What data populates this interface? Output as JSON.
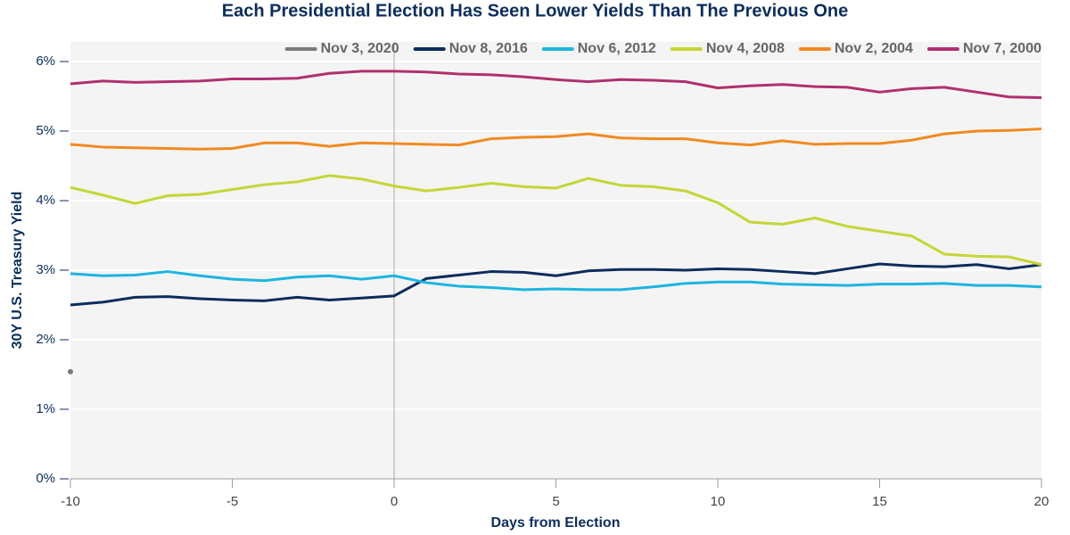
{
  "chart_data": {
    "type": "line",
    "title": "Each Presidential Election Has Seen Lower Yields Than The Previous One",
    "xlabel": "Days from Election",
    "ylabel": "30Y U.S. Treasury Yield",
    "x": [
      -10,
      -9,
      -8,
      -7,
      -6,
      -5,
      -4,
      -3,
      -2,
      -1,
      0,
      1,
      2,
      3,
      4,
      5,
      6,
      7,
      8,
      9,
      10,
      11,
      12,
      13,
      14,
      15,
      16,
      17,
      18,
      19,
      20
    ],
    "xlim": [
      -10,
      20
    ],
    "xticks": [
      -10,
      -5,
      0,
      5,
      10,
      15,
      20
    ],
    "ylim": [
      0,
      6
    ],
    "yticks": [
      {
        "value": 0,
        "label": "0%"
      },
      {
        "value": 1,
        "label": "1%"
      },
      {
        "value": 2,
        "label": "2%"
      },
      {
        "value": 3,
        "label": "3%"
      },
      {
        "value": 4,
        "label": "4%"
      },
      {
        "value": 5,
        "label": "5%"
      },
      {
        "value": 6,
        "label": "6%"
      }
    ],
    "grid": true,
    "vline_x": 0,
    "legend": "top-right",
    "series": [
      {
        "name": "Nov 3, 2020",
        "color": "#7a7a7a",
        "values": [
          1.54,
          null,
          null,
          null,
          null,
          null,
          null,
          null,
          null,
          null,
          null,
          null,
          null,
          null,
          null,
          null,
          null,
          null,
          null,
          null,
          null,
          null,
          null,
          null,
          null,
          null,
          null,
          null,
          null,
          null,
          null
        ]
      },
      {
        "name": "Nov 8, 2016",
        "color": "#0c2d5c",
        "values": [
          2.5,
          2.54,
          2.61,
          2.62,
          2.59,
          2.57,
          2.56,
          2.61,
          2.57,
          2.6,
          2.63,
          2.88,
          2.93,
          2.98,
          2.97,
          2.92,
          2.99,
          3.01,
          3.01,
          3.0,
          3.02,
          3.01,
          2.98,
          2.95,
          3.02,
          3.09,
          3.06,
          3.05,
          3.08,
          3.02,
          3.08
        ]
      },
      {
        "name": "Nov 6, 2012",
        "color": "#1cb5e0",
        "values": [
          2.95,
          2.92,
          2.93,
          2.98,
          2.92,
          2.87,
          2.85,
          2.9,
          2.92,
          2.87,
          2.92,
          2.82,
          2.77,
          2.75,
          2.72,
          2.73,
          2.72,
          2.72,
          2.76,
          2.81,
          2.83,
          2.83,
          2.8,
          2.79,
          2.78,
          2.8,
          2.8,
          2.81,
          2.78,
          2.78,
          2.76
        ]
      },
      {
        "name": "Nov 4, 2008",
        "color": "#c4d636",
        "values": [
          4.19,
          4.08,
          3.96,
          4.07,
          4.09,
          4.16,
          4.23,
          4.27,
          4.36,
          4.31,
          4.21,
          4.14,
          4.19,
          4.25,
          4.2,
          4.18,
          4.32,
          4.22,
          4.2,
          4.14,
          3.97,
          3.69,
          3.66,
          3.75,
          3.63,
          3.56,
          3.49,
          3.23,
          3.2,
          3.19,
          3.08
        ]
      },
      {
        "name": "Nov 2, 2004",
        "color": "#f18a21",
        "values": [
          4.81,
          4.77,
          4.76,
          4.75,
          4.74,
          4.75,
          4.83,
          4.83,
          4.78,
          4.83,
          4.82,
          4.81,
          4.8,
          4.89,
          4.91,
          4.92,
          4.96,
          4.9,
          4.89,
          4.89,
          4.83,
          4.8,
          4.86,
          4.81,
          4.82,
          4.82,
          4.87,
          4.96,
          5.0,
          5.01,
          5.03
        ]
      },
      {
        "name": "Nov 7, 2000",
        "color": "#b0306e",
        "values": [
          5.68,
          5.72,
          5.7,
          5.71,
          5.72,
          5.75,
          5.75,
          5.76,
          5.83,
          5.86,
          5.86,
          5.85,
          5.82,
          5.81,
          5.78,
          5.74,
          5.71,
          5.74,
          5.73,
          5.71,
          5.62,
          5.65,
          5.67,
          5.64,
          5.63,
          5.56,
          5.61,
          5.63,
          5.56,
          5.49,
          5.48
        ]
      }
    ]
  }
}
